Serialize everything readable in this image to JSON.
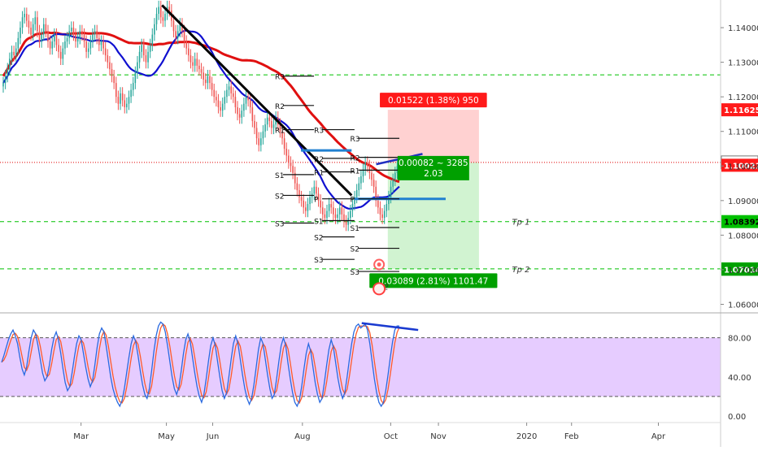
{
  "chart_data": {
    "type": "candlestick",
    "price_axis": {
      "ylim": [
        1.058,
        1.148
      ],
      "ticks": [
        "1.14000",
        "1.13000",
        "1.12000",
        "1.11000",
        "1.10000",
        "1.09000",
        "1.08000",
        "1.07000",
        "1.06000"
      ]
    },
    "time_axis": {
      "labels": [
        {
          "label": "Mar",
          "t": 56
        },
        {
          "label": "May",
          "t": 115
        },
        {
          "label": "Jun",
          "t": 147
        },
        {
          "label": "Aug",
          "t": 209
        },
        {
          "label": "Oct",
          "t": 270
        },
        {
          "label": "Nov",
          "t": 303
        },
        {
          "label": "2020",
          "t": 364
        },
        {
          "label": "Feb",
          "t": 395
        },
        {
          "label": "Apr",
          "t": 455
        }
      ],
      "range": [
        0,
        498
      ]
    },
    "candles_close": [
      1.124,
      1.126,
      1.128,
      1.131,
      1.133,
      1.132,
      1.134,
      1.137,
      1.14,
      1.143,
      1.144,
      1.142,
      1.14,
      1.138,
      1.141,
      1.143,
      1.139,
      1.136,
      1.138,
      1.141,
      1.139,
      1.136,
      1.134,
      1.136,
      1.138,
      1.135,
      1.133,
      1.131,
      1.134,
      1.136,
      1.137,
      1.139,
      1.14,
      1.138,
      1.136,
      1.137,
      1.139,
      1.138,
      1.136,
      1.133,
      1.134,
      1.136,
      1.138,
      1.139,
      1.137,
      1.135,
      1.136,
      1.134,
      1.132,
      1.13,
      1.128,
      1.126,
      1.124,
      1.12,
      1.118,
      1.121,
      1.119,
      1.117,
      1.118,
      1.12,
      1.122,
      1.124,
      1.127,
      1.13,
      1.133,
      1.135,
      1.132,
      1.13,
      1.133,
      1.135,
      1.138,
      1.141,
      1.144,
      1.146,
      1.143,
      1.142,
      1.144,
      1.146,
      1.145,
      1.142,
      1.139,
      1.137,
      1.139,
      1.141,
      1.139,
      1.136,
      1.134,
      1.132,
      1.13,
      1.129,
      1.131,
      1.129,
      1.128,
      1.127,
      1.125,
      1.124,
      1.126,
      1.124,
      1.122,
      1.12,
      1.119,
      1.117,
      1.116,
      1.118,
      1.12,
      1.122,
      1.123,
      1.121,
      1.12,
      1.117,
      1.115,
      1.114,
      1.116,
      1.118,
      1.12,
      1.119,
      1.117,
      1.113,
      1.111,
      1.108,
      1.106,
      1.108,
      1.11,
      1.112,
      1.114,
      1.113,
      1.111,
      1.112,
      1.114,
      1.112,
      1.11,
      1.108,
      1.105,
      1.103,
      1.101,
      1.1,
      1.098,
      1.095,
      1.093,
      1.091,
      1.09,
      1.088,
      1.087,
      1.089,
      1.091,
      1.092,
      1.094,
      1.092,
      1.09,
      1.088,
      1.086,
      1.085,
      1.087,
      1.089,
      1.088,
      1.086,
      1.085,
      1.086,
      1.088,
      1.086,
      1.084,
      1.083,
      1.085,
      1.087,
      1.089,
      1.091,
      1.093,
      1.095,
      1.097,
      1.099,
      1.101,
      1.1,
      1.098,
      1.096,
      1.094,
      1.09,
      1.088,
      1.086,
      1.085,
      1.087,
      1.089,
      1.091,
      1.094,
      1.096,
      1.098,
      1.1,
      1.101
    ],
    "horizontal_levels": [
      {
        "price": 1.12636,
        "label": "1.12636",
        "style": "dashed",
        "color": "#00c000"
      },
      {
        "price": 1.08392,
        "label": "1.08392",
        "style": "dashed",
        "color": "#00c000"
      },
      {
        "price": 1.07025,
        "label": "1.07025",
        "style": "dashed",
        "color": "#00c000"
      },
      {
        "price": 1.10103,
        "label": "1.10103",
        "style": "dotted",
        "color": "#e00000"
      }
    ],
    "price_badges": [
      {
        "price": 1.11625,
        "text": "1.11625",
        "bg": "#ff1a1a",
        "fg": "#ffffff"
      },
      {
        "price": 1.10103,
        "text": "1.10103",
        "bg": "#ffffff",
        "fg": "#000000",
        "border": "#777777"
      },
      {
        "price": 1.10021,
        "text": "1.10021",
        "bg": "#ff1a1a",
        "fg": "#ffffff"
      },
      {
        "price": 1.08392,
        "text": "1.08392",
        "bg": "#00c000",
        "fg": "#000000"
      },
      {
        "price": 1.07025,
        "text": "1.07025",
        "bg": "#00c000",
        "fg": "#000000"
      },
      {
        "price": 1.07014,
        "text": "1.07014",
        "bg": "#00a000",
        "fg": "#ffffff"
      }
    ],
    "trade_box": {
      "t0": 268,
      "t1": 331,
      "entry": 1.10103,
      "stop": 1.11625,
      "target": 1.07014,
      "stop_label": "0.01522 (1.38%) 950",
      "mid_label_1": "0.00082 ~ 3285",
      "mid_label_2": "2.03",
      "target_label": "0.03089 (2.81%) 1101.47"
    },
    "pivot_labels": [
      {
        "text": "R3",
        "t": 190,
        "t1": 217,
        "price": 1.126
      },
      {
        "text": "R2",
        "t": 190,
        "t1": 217,
        "price": 1.1175
      },
      {
        "text": "R1",
        "t": 190,
        "t1": 217,
        "price": 1.1105
      },
      {
        "text": "S1",
        "t": 190,
        "t1": 217,
        "price": 1.0975
      },
      {
        "text": "S2",
        "t": 190,
        "t1": 217,
        "price": 1.0915
      },
      {
        "text": "S3",
        "t": 190,
        "t1": 217,
        "price": 1.0835
      },
      {
        "text": "R3",
        "t": 217,
        "t1": 245,
        "price": 1.1105
      },
      {
        "text": "R2",
        "t": 217,
        "t1": 245,
        "price": 1.1022
      },
      {
        "text": "R1",
        "t": 217,
        "t1": 245,
        "price": 1.0983
      },
      {
        "text": "P",
        "t": 217,
        "t1": 245,
        "price": 1.0905
      },
      {
        "text": "S1",
        "t": 217,
        "t1": 245,
        "price": 1.0842
      },
      {
        "text": "S2",
        "t": 217,
        "t1": 245,
        "price": 1.0795
      },
      {
        "text": "S3",
        "t": 217,
        "t1": 245,
        "price": 1.073
      },
      {
        "text": "R3",
        "t": 242,
        "t1": 276,
        "price": 1.108
      },
      {
        "text": "R2",
        "t": 242,
        "t1": 276,
        "price": 1.1025
      },
      {
        "text": "R1",
        "t": 242,
        "t1": 276,
        "price": 1.0988
      },
      {
        "text": "P",
        "t": 242,
        "t1": 276,
        "price": 1.0905
      },
      {
        "text": "S1",
        "t": 242,
        "t1": 276,
        "price": 1.0822
      },
      {
        "text": "S2",
        "t": 242,
        "t1": 276,
        "price": 1.0762
      },
      {
        "text": "S3",
        "t": 242,
        "t1": 276,
        "price": 1.0695
      }
    ],
    "annotations": [
      {
        "text": "Tp 1",
        "t": 360,
        "price": 1.08392
      },
      {
        "text": "Tp 2",
        "t": 360,
        "price": 1.07025
      },
      {
        "text": "42",
        "t": 265,
        "price": 1.0652
      }
    ],
    "oscillator": {
      "ylim": [
        -5,
        103
      ],
      "ticks": [
        "80.00",
        "40.00",
        "0.00"
      ],
      "upper": 80,
      "lower": 20,
      "band_color": "#e6ccff",
      "k_values": [
        55,
        62,
        70,
        78,
        84,
        88,
        82,
        74,
        60,
        48,
        42,
        50,
        66,
        80,
        88,
        84,
        72,
        58,
        44,
        36,
        40,
        52,
        68,
        80,
        86,
        78,
        64,
        48,
        34,
        26,
        30,
        44,
        60,
        74,
        82,
        78,
        64,
        50,
        38,
        30,
        36,
        52,
        70,
        84,
        90,
        86,
        72,
        56,
        40,
        28,
        20,
        14,
        10,
        16,
        28,
        44,
        60,
        74,
        82,
        76,
        62,
        46,
        32,
        22,
        18,
        28,
        46,
        66,
        82,
        92,
        96,
        94,
        86,
        72,
        56,
        40,
        28,
        22,
        30,
        46,
        64,
        78,
        84,
        76,
        60,
        44,
        30,
        20,
        14,
        22,
        38,
        56,
        72,
        80,
        72,
        56,
        40,
        26,
        18,
        24,
        40,
        58,
        74,
        82,
        74,
        58,
        42,
        28,
        18,
        12,
        18,
        32,
        50,
        68,
        80,
        74,
        58,
        42,
        28,
        18,
        22,
        38,
        56,
        72,
        80,
        72,
        54,
        38,
        24,
        14,
        10,
        16,
        30,
        48,
        64,
        74,
        66,
        50,
        34,
        22,
        14,
        18,
        34,
        52,
        68,
        78,
        70,
        54,
        38,
        26,
        18,
        24,
        40,
        58,
        74,
        86,
        92,
        94,
        90,
        92,
        94,
        88,
        74,
        56,
        38,
        24,
        14,
        10,
        14,
        26,
        42,
        60,
        76,
        88,
        92,
        92
      ]
    }
  }
}
